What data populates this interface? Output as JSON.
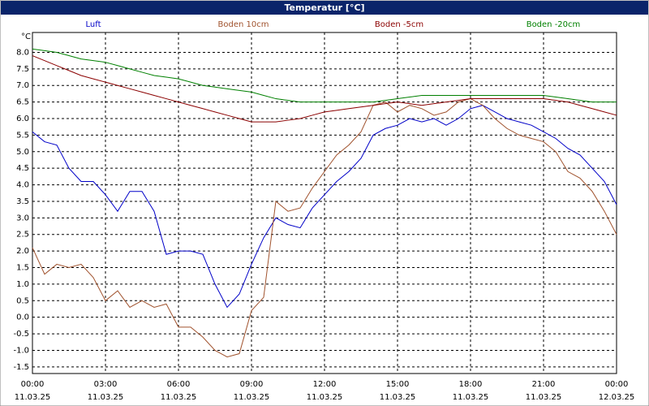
{
  "chart_data": {
    "type": "line",
    "title": "Temperatur [°C]",
    "y_label": "°C",
    "x": [
      0,
      0.5,
      1,
      1.5,
      2,
      2.5,
      3,
      3.5,
      4,
      4.5,
      5,
      5.5,
      6,
      6.5,
      7,
      7.5,
      8,
      8.5,
      9,
      9.5,
      10,
      10.5,
      11,
      11.5,
      12,
      12.5,
      13,
      13.5,
      14,
      14.5,
      15,
      15.5,
      16,
      16.5,
      17,
      17.5,
      18,
      18.5,
      19,
      19.5,
      20,
      20.5,
      21,
      21.5,
      22,
      22.5,
      23,
      23.5,
      24
    ],
    "series": [
      {
        "name": "Luft",
        "color": "#0000c8",
        "values": [
          5.6,
          5.3,
          5.2,
          4.5,
          4.1,
          4.1,
          3.7,
          3.2,
          3.8,
          3.8,
          3.2,
          1.9,
          2.0,
          2.0,
          1.9,
          1.0,
          0.3,
          0.7,
          1.6,
          2.4,
          3.0,
          2.8,
          2.7,
          3.3,
          3.7,
          4.1,
          4.4,
          4.8,
          5.5,
          5.7,
          5.8,
          6.0,
          5.9,
          6.0,
          5.8,
          6.0,
          6.3,
          6.4,
          6.2,
          6.0,
          5.9,
          5.8,
          5.6,
          5.4,
          5.1,
          4.9,
          4.5,
          4.1,
          3.4
        ]
      },
      {
        "name": "Boden 10cm",
        "color": "#a0522d",
        "values": [
          2.1,
          1.3,
          1.6,
          1.5,
          1.6,
          1.2,
          0.5,
          0.8,
          0.3,
          0.5,
          0.3,
          0.4,
          -0.3,
          -0.3,
          -0.6,
          -1.0,
          -1.2,
          -1.1,
          0.2,
          0.6,
          3.5,
          3.2,
          3.3,
          3.9,
          4.4,
          4.9,
          5.2,
          5.6,
          6.4,
          6.5,
          6.2,
          6.4,
          6.3,
          6.1,
          6.2,
          6.5,
          6.6,
          6.4,
          6.0,
          5.7,
          5.5,
          5.4,
          5.3,
          5.0,
          4.4,
          4.2,
          3.8,
          3.2,
          2.5
        ]
      },
      {
        "name": "Boden -5cm",
        "color": "#8b0000",
        "values": [
          7.9,
          7.75,
          7.6,
          7.45,
          7.3,
          7.2,
          7.1,
          7.0,
          6.9,
          6.8,
          6.7,
          6.6,
          6.5,
          6.4,
          6.3,
          6.2,
          6.1,
          6.0,
          5.9,
          5.9,
          5.9,
          5.95,
          6.0,
          6.1,
          6.2,
          6.25,
          6.3,
          6.35,
          6.4,
          6.45,
          6.5,
          6.45,
          6.4,
          6.45,
          6.5,
          6.55,
          6.6,
          6.6,
          6.6,
          6.6,
          6.6,
          6.6,
          6.6,
          6.55,
          6.5,
          6.4,
          6.3,
          6.2,
          6.1
        ]
      },
      {
        "name": "Boden -20cm",
        "color": "#008000",
        "values": [
          8.1,
          8.05,
          8.0,
          7.9,
          7.8,
          7.75,
          7.7,
          7.6,
          7.5,
          7.4,
          7.3,
          7.25,
          7.2,
          7.1,
          7.0,
          6.95,
          6.9,
          6.85,
          6.8,
          6.7,
          6.6,
          6.55,
          6.5,
          6.5,
          6.5,
          6.5,
          6.5,
          6.5,
          6.5,
          6.55,
          6.6,
          6.65,
          6.7,
          6.7,
          6.7,
          6.7,
          6.7,
          6.7,
          6.7,
          6.7,
          6.7,
          6.7,
          6.7,
          6.65,
          6.6,
          6.55,
          6.5,
          6.5,
          6.5
        ]
      }
    ],
    "xlim": [
      0,
      24
    ],
    "xticks": [
      {
        "value": 0,
        "label": "00:00"
      },
      {
        "value": 3,
        "label": "03:00"
      },
      {
        "value": 6,
        "label": "06:00"
      },
      {
        "value": 9,
        "label": "09:00"
      },
      {
        "value": 12,
        "label": "12:00"
      },
      {
        "value": 15,
        "label": "15:00"
      },
      {
        "value": 18,
        "label": "18:00"
      },
      {
        "value": 21,
        "label": "21:00"
      },
      {
        "value": 24,
        "label": "00:00"
      }
    ],
    "xtick_dates": [
      "11.03.25",
      "11.03.25",
      "11.03.25",
      "11.03.25",
      "11.03.25",
      "11.03.25",
      "11.03.25",
      "11.03.25",
      "12.03.25"
    ],
    "ylim": [
      -1.7,
      8.6
    ],
    "yticks": [
      {
        "value": -1.5,
        "label": "-1.5"
      },
      {
        "value": -1,
        "label": "-1.0"
      },
      {
        "value": -0.5,
        "label": "-0.5"
      },
      {
        "value": 0,
        "label": "0.0"
      },
      0.5,
      {
        "value": 1,
        "label": "1.0"
      },
      1.5,
      {
        "value": 2,
        "label": "2.0"
      },
      2.5,
      {
        "value": 3,
        "label": "3.0"
      },
      3.5,
      {
        "value": 4,
        "label": "4.0"
      },
      4.5,
      {
        "value": 5,
        "label": "5.0"
      },
      5.5,
      {
        "value": 6,
        "label": "6.0"
      },
      6.5,
      {
        "value": 7,
        "label": "7.0"
      },
      7.5,
      {
        "value": 8,
        "label": "8.0"
      }
    ],
    "grid": true
  }
}
